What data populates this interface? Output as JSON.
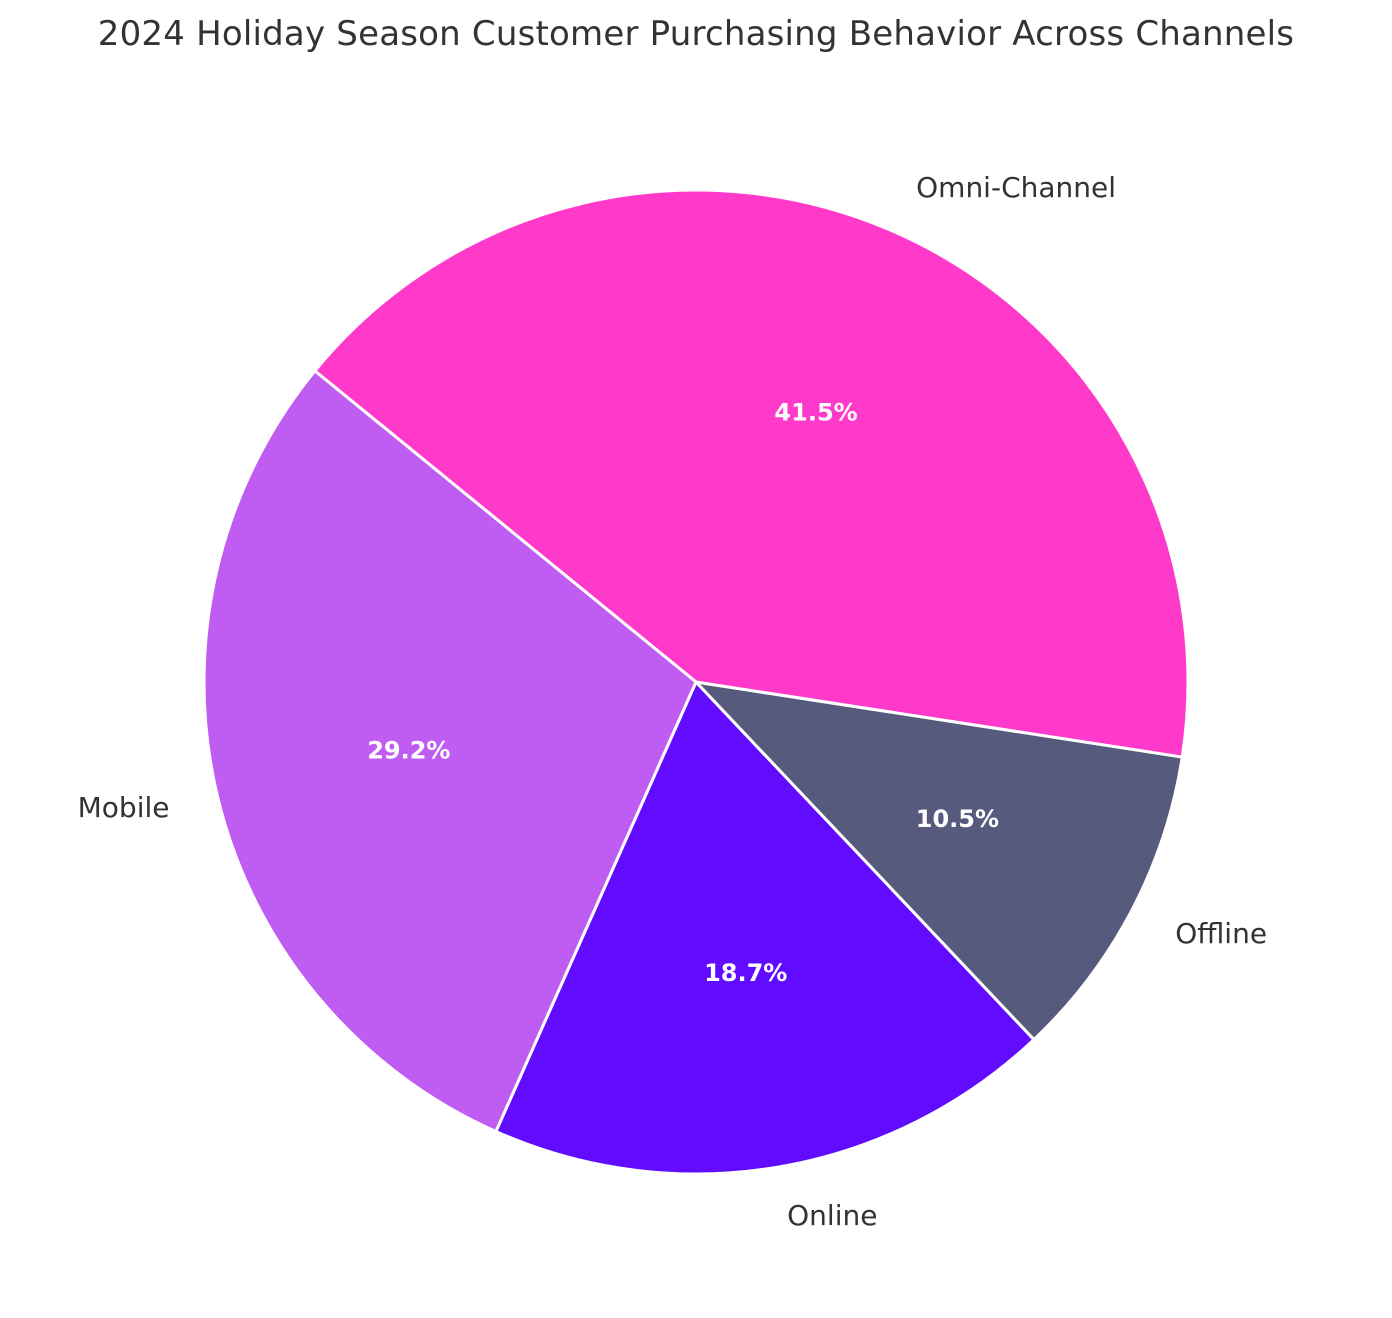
{
  "chart_data": {
    "type": "pie",
    "title": "2024 Holiday Season Customer Purchasing Behavior Across Channels",
    "categories": [
      "Online",
      "Offline",
      "Omni-Channel",
      "Mobile"
    ],
    "values": [
      18.7,
      10.5,
      41.5,
      29.2
    ],
    "percent_labels": [
      "18.7%",
      "10.5%",
      "41.5%",
      "29.2%"
    ],
    "colors": [
      "#610bff",
      "#565a7c",
      "#ff3acb",
      "#bf5cf2"
    ],
    "start_angle_deg": 246,
    "direction": "counterclockwise",
    "legend": "none"
  }
}
